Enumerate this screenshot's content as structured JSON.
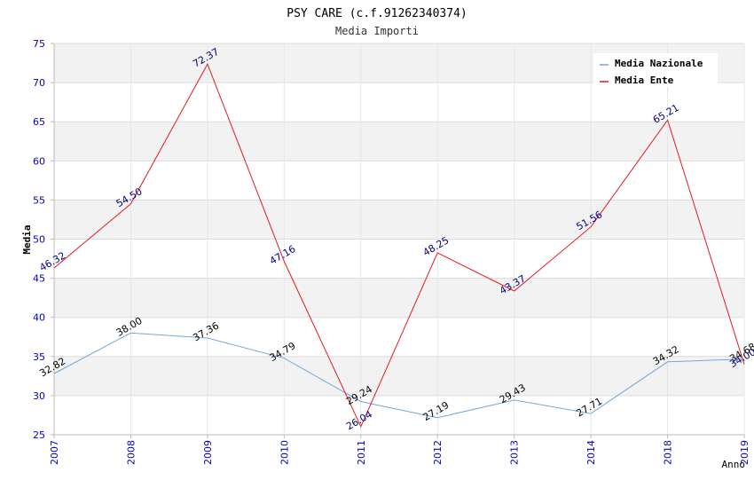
{
  "chart_data": {
    "type": "line",
    "title": "PSY CARE (c.f.91262340374)",
    "subtitle": "Media Importi",
    "xlabel": "Anno",
    "ylabel": "Media",
    "ylim": [
      25,
      75
    ],
    "yticks": [
      "25",
      "30",
      "35",
      "40",
      "45",
      "50",
      "55",
      "60",
      "65",
      "70",
      "75"
    ],
    "categories": [
      "2007",
      "2008",
      "2009",
      "2010",
      "2011",
      "2012",
      "2013",
      "2014",
      "2018",
      "2019"
    ],
    "legend_position": "top-right",
    "series": [
      {
        "name": "Media Nazionale",
        "color": "#6fa8dc",
        "label_color": "#000000",
        "values": [
          32.82,
          38.0,
          37.36,
          34.79,
          29.24,
          27.19,
          29.43,
          27.71,
          34.32,
          34.68
        ],
        "labels": [
          "32.82",
          "38.00",
          "37.36",
          "34.79",
          "29.24",
          "27.19",
          "29.43",
          "27.71",
          "34.32",
          "34.68"
        ]
      },
      {
        "name": "Media Ente",
        "color": "#e31a1c",
        "label_color": "#000080",
        "values": [
          46.32,
          54.5,
          72.37,
          47.16,
          26.04,
          48.25,
          43.37,
          51.56,
          65.21,
          34.0
        ],
        "labels": [
          "46.32",
          "54.50",
          "72.37",
          "47.16",
          "26.04",
          "48.25",
          "43.37",
          "51.56",
          "65.21",
          "34.00"
        ]
      }
    ]
  }
}
